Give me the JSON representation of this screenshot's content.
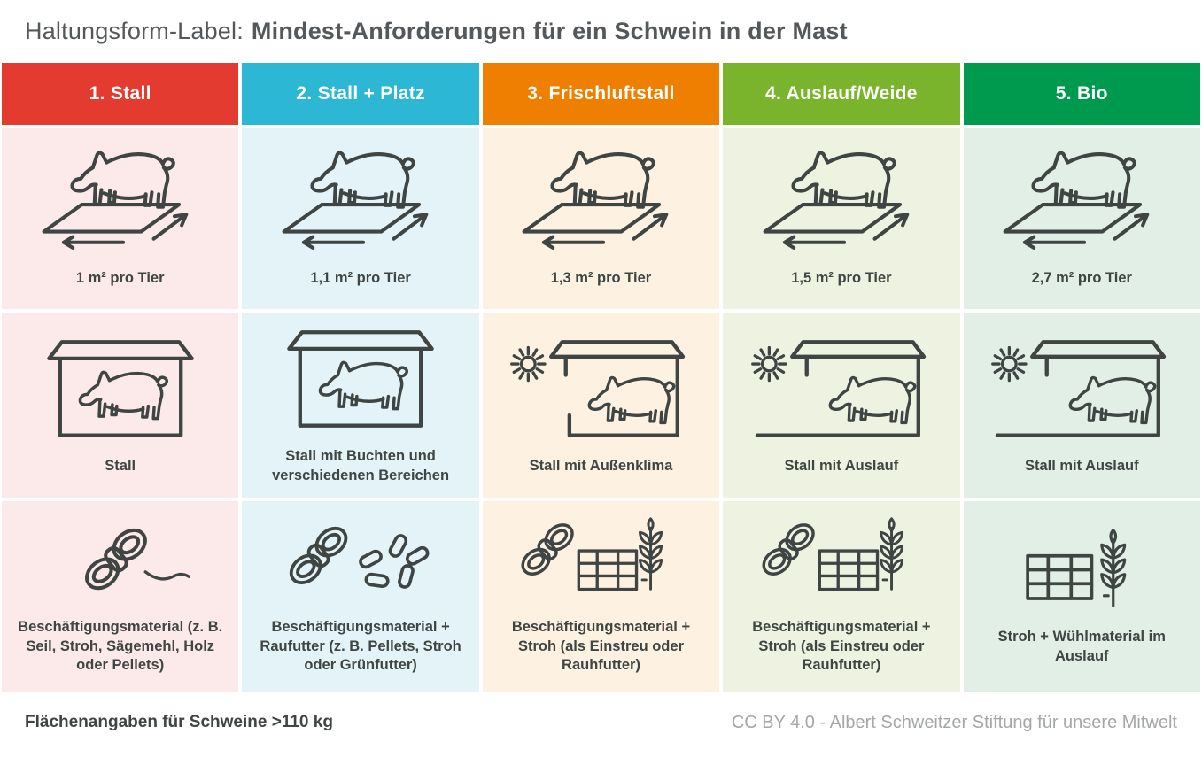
{
  "title": {
    "prefix": "Haltungsform-Label:",
    "main": "Mindest-Anforderungen für ein Schwein in der Mast"
  },
  "footer": {
    "note": "Flächenangaben für Schweine >110 kg",
    "credit": "CC BY 4.0 - Albert Schweitzer Stiftung für unsere Mitwelt"
  },
  "colors": {
    "ink": "#3f4543",
    "title_text": "#54585a",
    "credit_text": "#a3a8a6"
  },
  "columns": [
    {
      "header": "1. Stall",
      "header_color": "#e33b30",
      "tint": "#fbeae9",
      "rows": {
        "area": {
          "label": "1 m² pro Tier",
          "icon": "area"
        },
        "housing": {
          "label": "Stall",
          "icon": "stall-closed"
        },
        "material": {
          "label": "Beschäftigungsmaterial (z. B. Seil, Stroh, Sägemehl, Holz oder Pellets)",
          "icon": "rope-tail"
        }
      }
    },
    {
      "header": "2. Stall + Platz",
      "header_color": "#2cb7d5",
      "tint": "#e4f3f8",
      "rows": {
        "area": {
          "label": "1,1 m² pro Tier",
          "icon": "area"
        },
        "housing": {
          "label": "Stall mit Buchten und verschiedenen Bereichen",
          "icon": "stall-closed"
        },
        "material": {
          "label": "Beschäftigungsmaterial + Raufutter (z. B. Pellets, Stroh oder Grünfutter)",
          "icon": "rope-pellets"
        }
      }
    },
    {
      "header": "3. Frischluftstall",
      "header_color": "#ef7f00",
      "tint": "#fdf1e2",
      "rows": {
        "area": {
          "label": "1,3 m² pro Tier",
          "icon": "area"
        },
        "housing": {
          "label": "Stall mit Außenklima",
          "icon": "stall-open"
        },
        "material": {
          "label": "Beschäftigungsmaterial + Stroh (als Einstreu oder Rauhfutter)",
          "icon": "rope-bale-wheat"
        }
      }
    },
    {
      "header": "4. Auslauf/Weide",
      "header_color": "#7ab42c",
      "tint": "#eef3e1",
      "rows": {
        "area": {
          "label": "1,5 m² pro Tier",
          "icon": "area"
        },
        "housing": {
          "label": "Stall mit Auslauf",
          "icon": "stall-outdoor"
        },
        "material": {
          "label": "Beschäftigungsmaterial + Stroh (als Einstreu oder Rauhfutter)",
          "icon": "rope-bale-wheat"
        }
      }
    },
    {
      "header": "5. Bio",
      "header_color": "#009a4e",
      "tint": "#e1efe7",
      "rows": {
        "area": {
          "label": "2,7 m² pro Tier",
          "icon": "area"
        },
        "housing": {
          "label": "Stall mit Auslauf",
          "icon": "stall-outdoor"
        },
        "material": {
          "label": "Stroh + Wühlmaterial im Auslauf",
          "icon": "bale-wheat"
        }
      }
    }
  ]
}
